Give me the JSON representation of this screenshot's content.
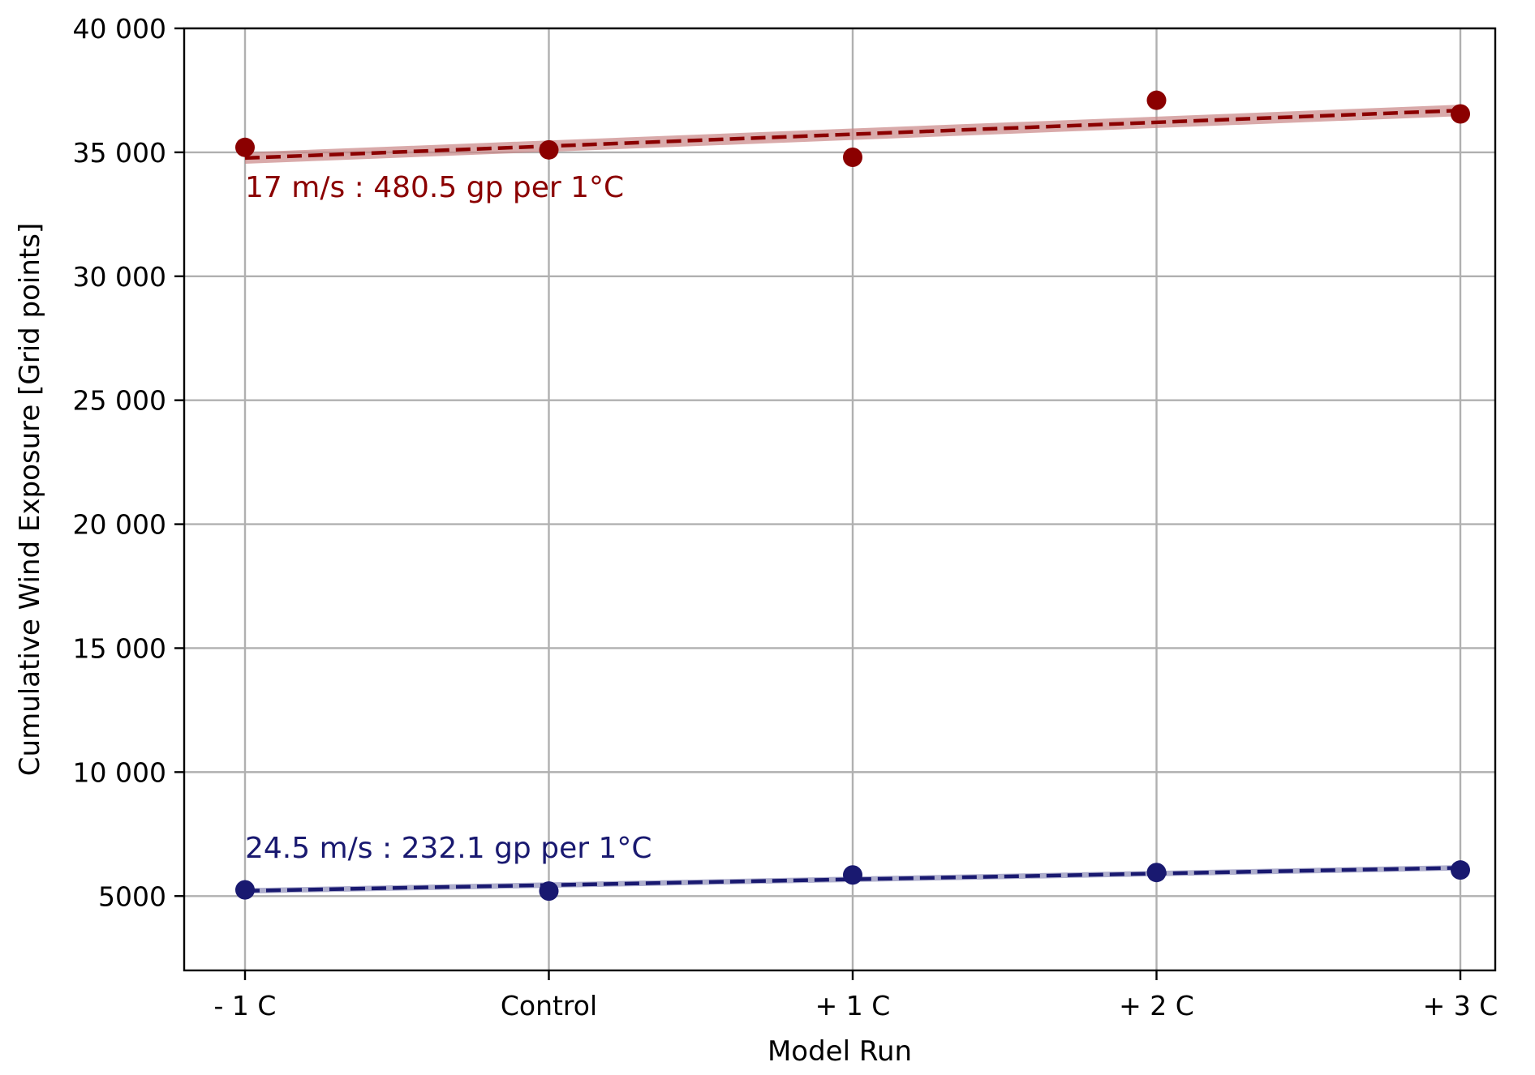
{
  "chart_data": {
    "type": "scatter",
    "title": "",
    "xlabel": "Model Run",
    "ylabel": "Cumulative Wind Exposure [Grid points]",
    "categories": [
      "- 1 C",
      "Control",
      "+ 1 C",
      "+ 2 C",
      "+ 3 C"
    ],
    "yticks": [
      5000,
      10000,
      15000,
      20000,
      25000,
      30000,
      35000,
      40000
    ],
    "ytick_labels": [
      "5000",
      "10 000",
      "15 000",
      "20 000",
      "25 000",
      "30 000",
      "35 000",
      "40 000"
    ],
    "ylim": [
      2000,
      40000
    ],
    "grid": true,
    "series": [
      {
        "color": "#8b0000",
        "band_color": "#c98686",
        "values": [
          35200,
          35100,
          34800,
          37100,
          36550
        ],
        "trend": [
          34770,
          36690
        ],
        "band_halfwidth": 230,
        "annotation": "17 m/s : 480.5 gp per 1°C",
        "annotation_anchor": {
          "category_index": 0,
          "y": 33200
        }
      },
      {
        "color": "#191970",
        "band_color": "#8c8cb8",
        "values": [
          5250,
          5200,
          5850,
          5950,
          6050
        ],
        "trend": [
          5210,
          6140
        ],
        "band_halfwidth": 110,
        "annotation": "24.5 m/s : 232.1 gp per 1°C",
        "annotation_anchor": {
          "category_index": 0,
          "y": 6550
        }
      }
    ]
  }
}
